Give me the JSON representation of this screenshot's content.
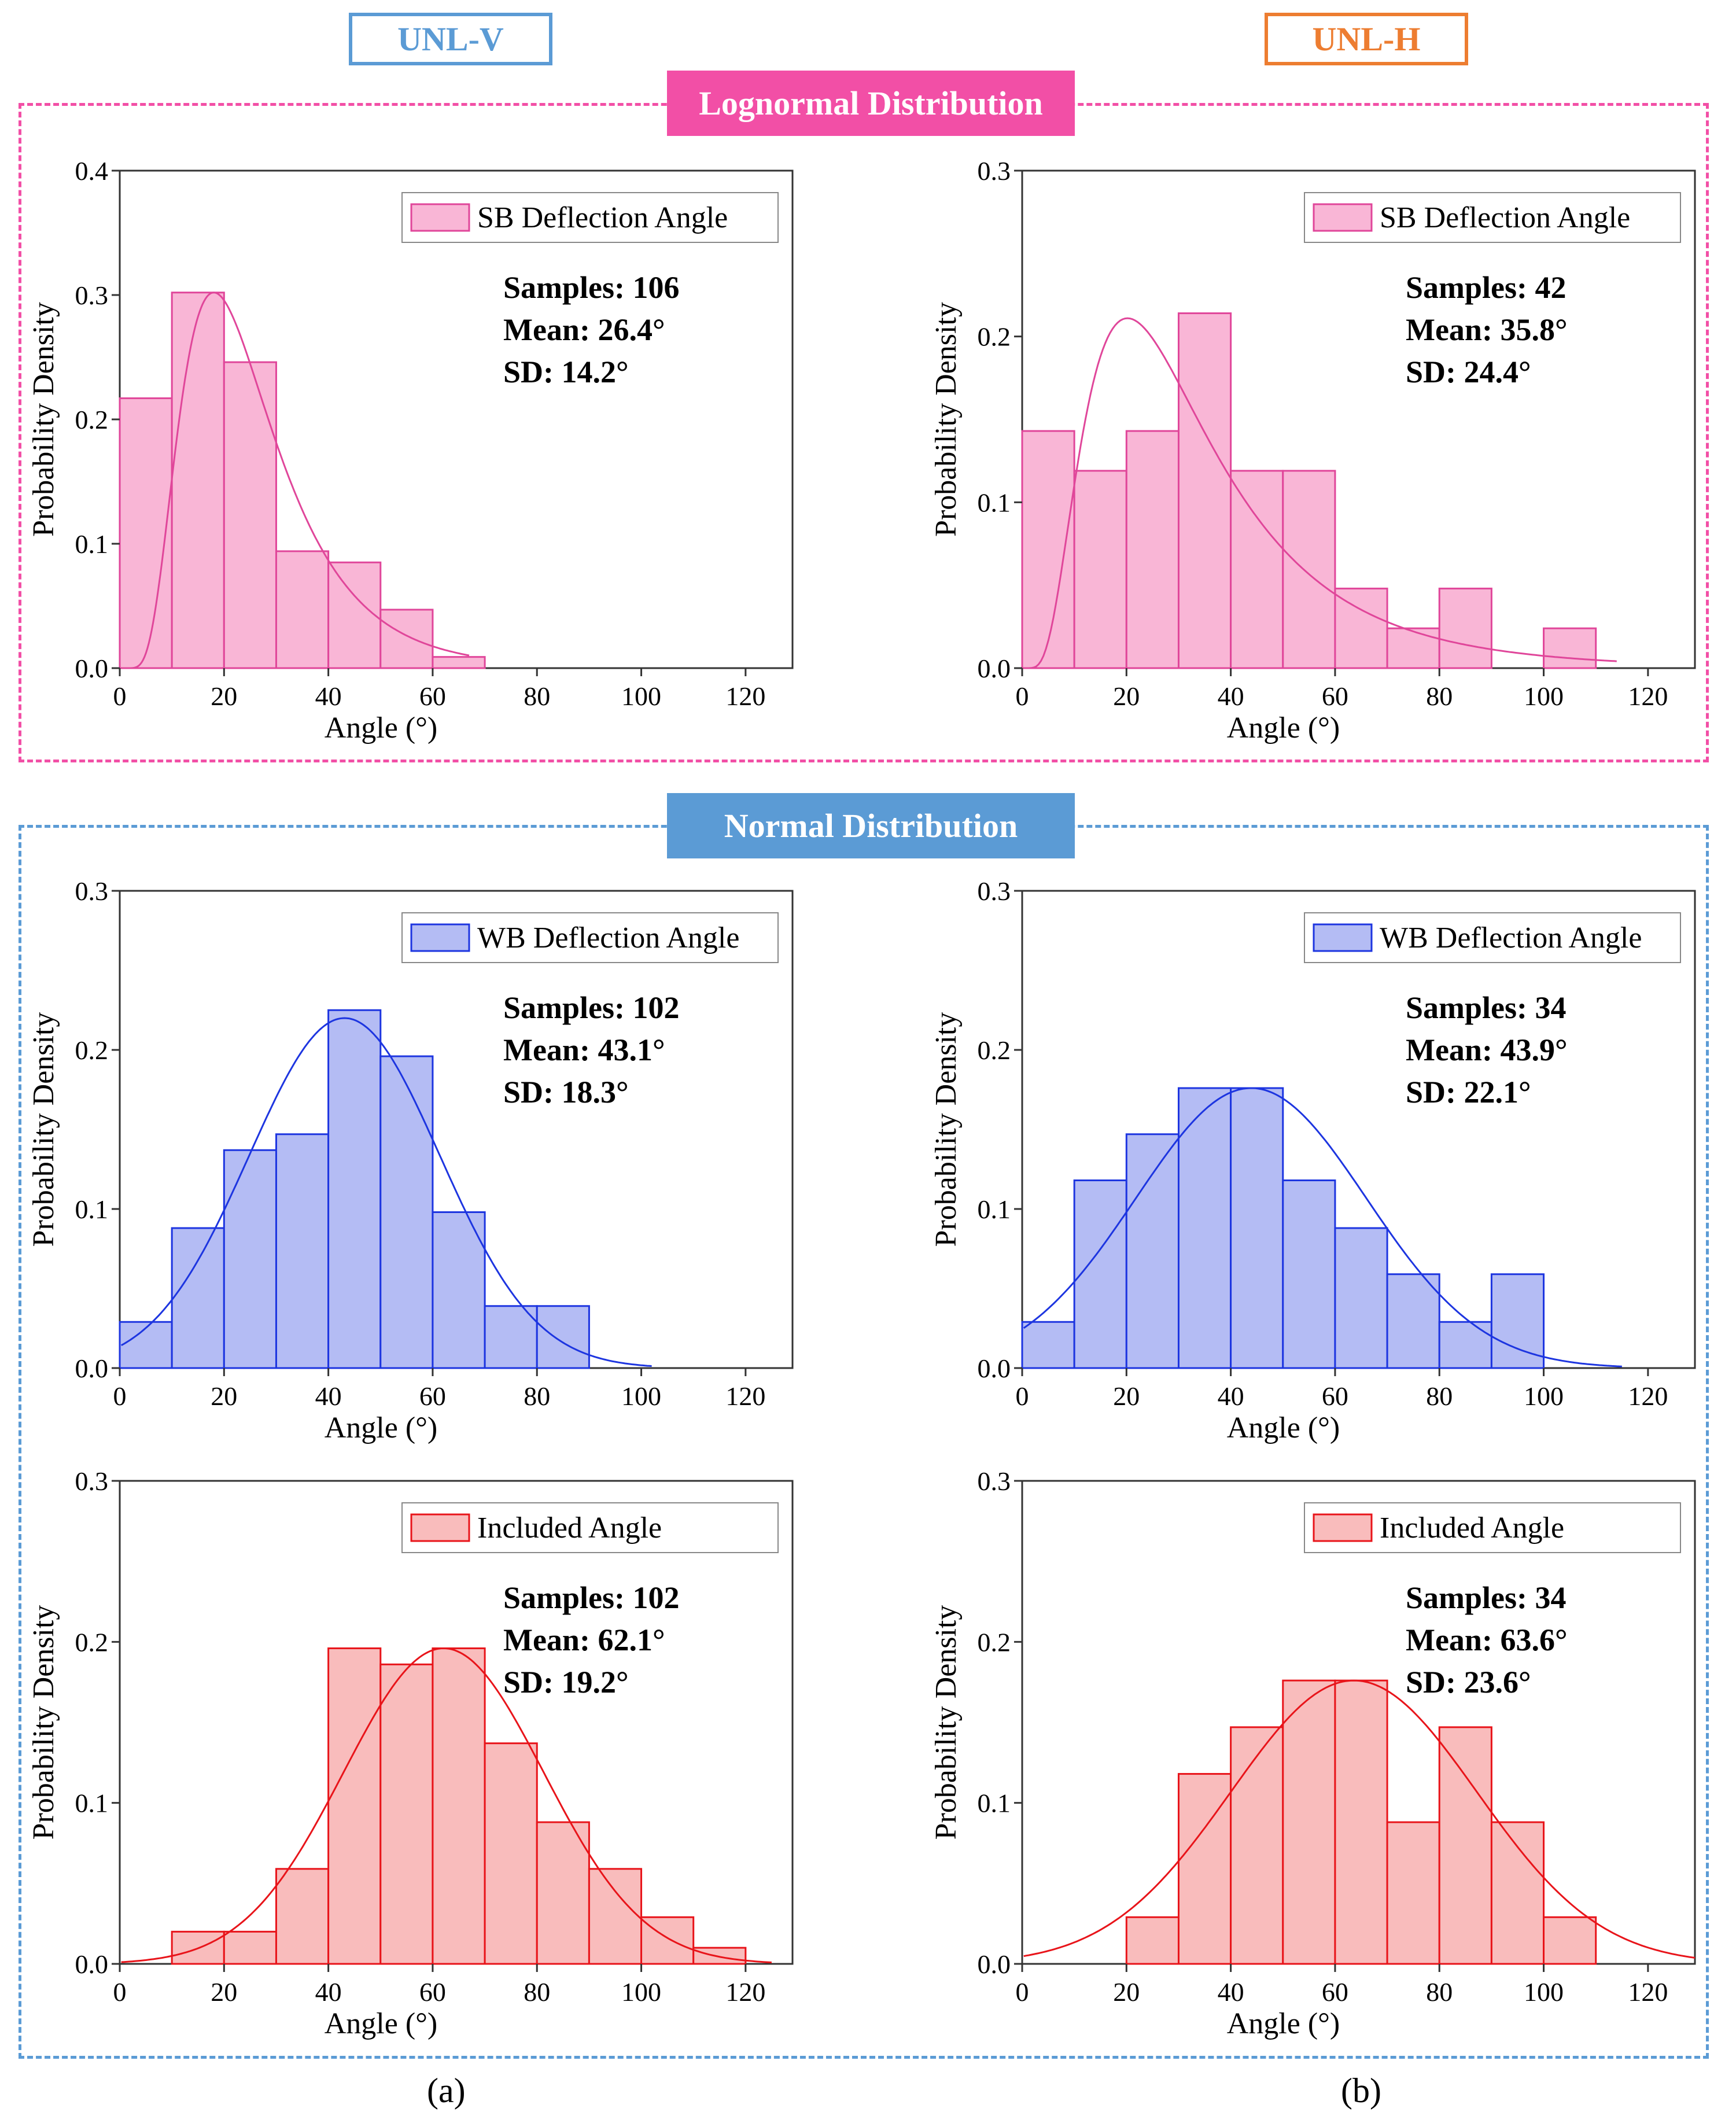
{
  "column_headers": {
    "left": {
      "label": "UNL-V",
      "color": "#5b9bd5"
    },
    "right": {
      "label": "UNL-H",
      "color": "#ed7d31"
    }
  },
  "groups": {
    "lognormal": {
      "label": "Lognormal Distribution",
      "color": "#f24fa6"
    },
    "normal": {
      "label": "Normal Distribution",
      "color": "#5b9bd5"
    }
  },
  "subfigure_labels": {
    "a": "(a)",
    "b": "(b)"
  },
  "axis_labels": {
    "x": "Angle (°)",
    "y": "Probability Density"
  },
  "chart_data": [
    {
      "id": "sb_v",
      "type": "bar",
      "group": "lognormal",
      "column": "UNL-V",
      "legend": "SB Deflection Angle",
      "fill": "#f9b6d6",
      "stroke": "#e0469a",
      "xlim": [
        0,
        129
      ],
      "ylim": [
        0,
        0.4
      ],
      "x_ticks": [
        0,
        20,
        40,
        60,
        80,
        100,
        120
      ],
      "y_ticks": [
        0,
        0.1,
        0.2,
        0.3,
        0.4
      ],
      "y_tick_labels": [
        "0.0",
        "0.1",
        "0.2",
        "0.3",
        "0.4"
      ],
      "bin_width": 10,
      "bins": [
        0,
        10,
        20,
        30,
        40,
        50,
        60
      ],
      "values": [
        0.217,
        0.302,
        0.246,
        0.094,
        0.085,
        0.047,
        0.009
      ],
      "fit": {
        "dist": "lognormal",
        "mean": 26.4,
        "sd": 14.2,
        "x_range": [
          0,
          67
        ],
        "peak": 0.302
      },
      "stats": [
        "Samples: 106",
        "Mean: 26.4°",
        "SD: 14.2°"
      ]
    },
    {
      "id": "sb_h",
      "type": "bar",
      "group": "lognormal",
      "column": "UNL-H",
      "legend": "SB Deflection Angle",
      "fill": "#f9b6d6",
      "stroke": "#e0469a",
      "xlim": [
        0,
        129
      ],
      "ylim": [
        0,
        0.3
      ],
      "x_ticks": [
        0,
        20,
        40,
        60,
        80,
        100,
        120
      ],
      "y_ticks": [
        0,
        0.1,
        0.2,
        0.3
      ],
      "y_tick_labels": [
        "0.0",
        "0.1",
        "0.2",
        "0.3"
      ],
      "bin_width": 10,
      "bins": [
        0,
        10,
        20,
        30,
        40,
        50,
        60,
        70,
        80,
        90,
        100
      ],
      "values": [
        0.143,
        0.119,
        0.143,
        0.214,
        0.119,
        0.119,
        0.048,
        0.024,
        0.048,
        0,
        0.024
      ],
      "fit": {
        "dist": "lognormal",
        "mean": 35.8,
        "sd": 24.4,
        "x_range": [
          0,
          114
        ],
        "peak": 0.211
      },
      "stats": [
        "Samples: 42",
        "Mean: 35.8°",
        "SD: 24.4°"
      ]
    },
    {
      "id": "wb_v",
      "type": "bar",
      "group": "normal",
      "column": "UNL-V",
      "legend": "WB Deflection Angle",
      "fill": "#b4bcf4",
      "stroke": "#1d35e0",
      "xlim": [
        0,
        129
      ],
      "ylim": [
        0,
        0.3
      ],
      "x_ticks": [
        0,
        20,
        40,
        60,
        80,
        100,
        120
      ],
      "y_ticks": [
        0,
        0.1,
        0.2,
        0.3
      ],
      "y_tick_labels": [
        "0.0",
        "0.1",
        "0.2",
        "0.3"
      ],
      "bin_width": 10,
      "bins": [
        0,
        10,
        20,
        30,
        40,
        50,
        60,
        70,
        80
      ],
      "values": [
        0.029,
        0.088,
        0.137,
        0.147,
        0.225,
        0.196,
        0.098,
        0.039,
        0.039
      ],
      "fit": {
        "dist": "normal",
        "mean": 43.1,
        "sd": 18.3,
        "x_range": [
          0,
          102
        ],
        "peak": 0.22
      },
      "stats": [
        "Samples: 102",
        "Mean: 43.1°",
        "SD: 18.3°"
      ]
    },
    {
      "id": "wb_h",
      "type": "bar",
      "group": "normal",
      "column": "UNL-H",
      "legend": "WB Deflection Angle",
      "fill": "#b4bcf4",
      "stroke": "#1d35e0",
      "xlim": [
        0,
        129
      ],
      "ylim": [
        0,
        0.3
      ],
      "x_ticks": [
        0,
        20,
        40,
        60,
        80,
        100,
        120
      ],
      "y_ticks": [
        0,
        0.1,
        0.2,
        0.3
      ],
      "y_tick_labels": [
        "0.0",
        "0.1",
        "0.2",
        "0.3"
      ],
      "bin_width": 10,
      "bins": [
        0,
        10,
        20,
        30,
        40,
        50,
        60,
        70,
        80,
        90
      ],
      "values": [
        0.029,
        0.118,
        0.147,
        0.176,
        0.176,
        0.118,
        0.088,
        0.059,
        0.029,
        0.059
      ],
      "fit": {
        "dist": "normal",
        "mean": 43.9,
        "sd": 22.1,
        "x_range": [
          0,
          115
        ],
        "peak": 0.176
      },
      "stats": [
        "Samples: 34",
        "Mean: 43.9°",
        "SD: 22.1°"
      ]
    },
    {
      "id": "inc_v",
      "type": "bar",
      "group": "normal",
      "column": "UNL-V",
      "legend": "Included Angle",
      "fill": "#f9bcbc",
      "stroke": "#e8141a",
      "xlim": [
        0,
        129
      ],
      "ylim": [
        0,
        0.3
      ],
      "x_ticks": [
        0,
        20,
        40,
        60,
        80,
        100,
        120
      ],
      "y_ticks": [
        0,
        0.1,
        0.2,
        0.3
      ],
      "y_tick_labels": [
        "0.0",
        "0.1",
        "0.2",
        "0.3"
      ],
      "bin_width": 10,
      "bins": [
        10,
        20,
        30,
        40,
        50,
        60,
        70,
        80,
        90,
        100,
        110
      ],
      "values": [
        0.02,
        0.02,
        0.059,
        0.196,
        0.186,
        0.196,
        0.137,
        0.088,
        0.059,
        0.029,
        0.01
      ],
      "fit": {
        "dist": "normal",
        "mean": 62.1,
        "sd": 19.2,
        "x_range": [
          0,
          125
        ],
        "peak": 0.196
      },
      "stats": [
        "Samples: 102",
        "Mean: 62.1°",
        "SD: 19.2°"
      ]
    },
    {
      "id": "inc_h",
      "type": "bar",
      "group": "normal",
      "column": "UNL-H",
      "legend": "Included Angle",
      "fill": "#f9bcbc",
      "stroke": "#e8141a",
      "xlim": [
        0,
        129
      ],
      "ylim": [
        0,
        0.3
      ],
      "x_ticks": [
        0,
        20,
        40,
        60,
        80,
        100,
        120
      ],
      "y_ticks": [
        0,
        0.1,
        0.2,
        0.3
      ],
      "y_tick_labels": [
        "0.0",
        "0.1",
        "0.2",
        "0.3"
      ],
      "bin_width": 10,
      "bins": [
        20,
        30,
        40,
        50,
        60,
        70,
        80,
        90,
        100
      ],
      "values": [
        0.029,
        0.118,
        0.147,
        0.176,
        0.176,
        0.088,
        0.147,
        0.088,
        0.029
      ],
      "fit": {
        "dist": "normal",
        "mean": 63.6,
        "sd": 23.6,
        "x_range": [
          0,
          129
        ],
        "peak": 0.176
      },
      "stats": [
        "Samples: 34",
        "Mean: 63.6°",
        "SD: 23.6°"
      ]
    }
  ]
}
